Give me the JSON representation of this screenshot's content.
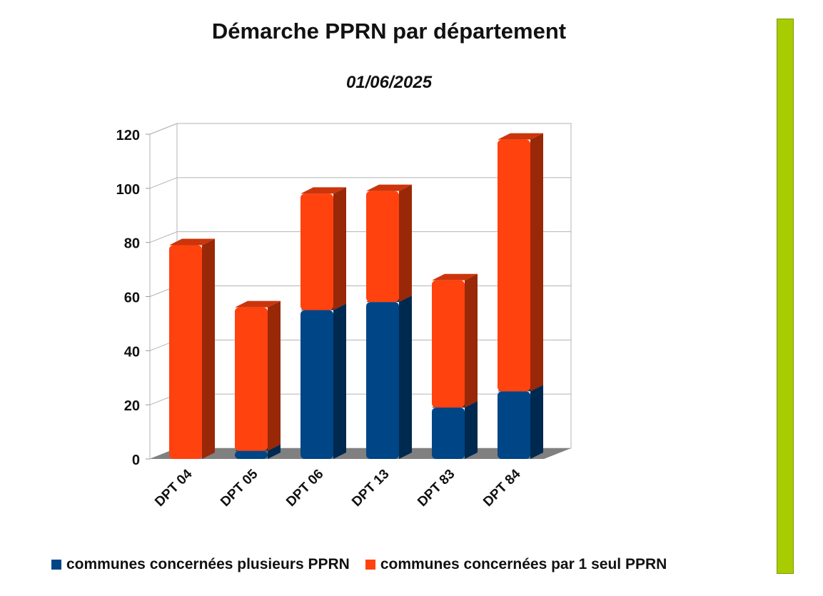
{
  "colors": {
    "accent_bar": "#a8cc00",
    "series_1": "#004586",
    "series_2": "#ff420e",
    "floor": "#808080",
    "grid": "#b3b3b3"
  },
  "chart_data": {
    "type": "bar",
    "stacked": true,
    "three_d": true,
    "title": "Démarche PPRN par département",
    "subtitle": "01/06/2025",
    "categories": [
      "DPT 04",
      "DPT 05",
      "DPT 06",
      "DPT 13",
      "DPT 83",
      "DPT 84"
    ],
    "series": [
      {
        "name": "communes concernées plusieurs PPRN",
        "values": [
          0,
          3,
          55,
          58,
          19,
          25
        ]
      },
      {
        "name": "communes concernées par 1 seul PPRN",
        "values": [
          79,
          53,
          43,
          41,
          47,
          93
        ]
      }
    ],
    "y_ticks": [
      "0",
      "20",
      "40",
      "60",
      "80",
      "100",
      "120"
    ],
    "ylim": [
      0,
      120
    ],
    "grid": true,
    "legend_position": "bottom"
  }
}
